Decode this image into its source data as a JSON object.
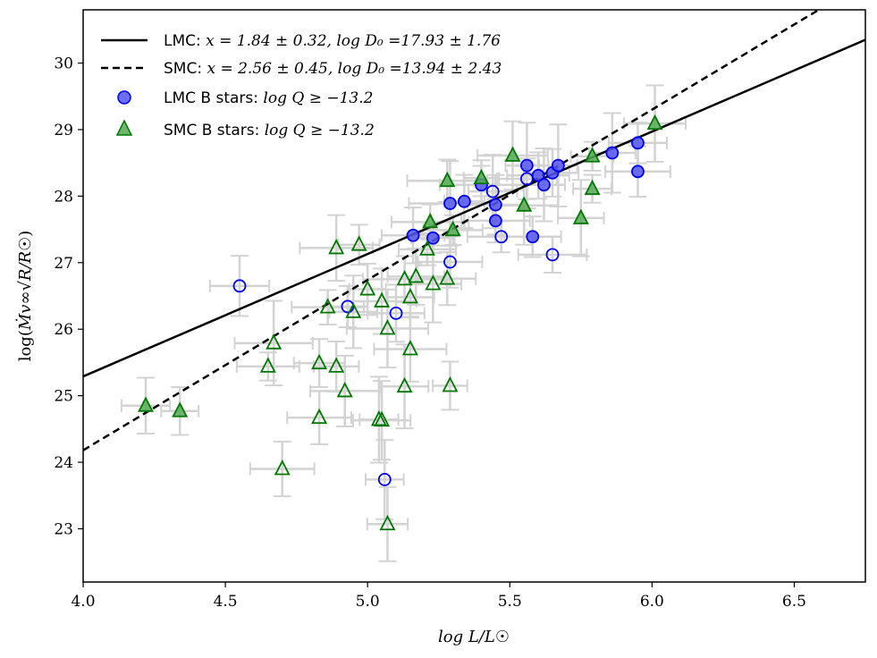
{
  "chart_data": {
    "type": "scatter",
    "xlabel": "log L/L☉",
    "ylabel": "log(Ṁv∞√(R/R☉))",
    "xlim": [
      4.0,
      6.75
    ],
    "ylim": [
      22.2,
      30.8
    ],
    "x_ticks": [
      "4.0",
      "4.5",
      "5.0",
      "5.5",
      "6.0",
      "6.5"
    ],
    "y_ticks": [
      "23",
      "24",
      "25",
      "26",
      "27",
      "28",
      "29",
      "30"
    ],
    "x_tick_values": [
      4.0,
      4.5,
      5.0,
      5.5,
      6.0,
      6.5
    ],
    "y_tick_values": [
      23,
      24,
      25,
      26,
      27,
      28,
      29,
      30
    ],
    "legend_placement": "top-left",
    "fits": [
      {
        "name": "LMC",
        "style": "solid",
        "slope": 1.84,
        "intercept": 17.93,
        "legend_prefix": "LMC: ",
        "legend_math": "x = 1.84 ± 0.32, log D₀ =17.93 ± 1.76"
      },
      {
        "name": "SMC",
        "style": "dashed",
        "slope": 2.56,
        "intercept": 13.94,
        "legend_prefix": "SMC: ",
        "legend_math": "x = 2.56 ± 0.45, log D₀ =13.94 ± 2.43"
      }
    ],
    "series": [
      {
        "name": "LMC B stars",
        "legend_prefix": "LMC B stars: ",
        "legend_math": "log Q ≥ −13.2",
        "marker": "circle",
        "color": "#0000ee",
        "fill": "#5555ee",
        "filled_points": [
          [
            5.16,
            27.41
          ],
          [
            5.23,
            27.37
          ],
          [
            5.29,
            27.89
          ],
          [
            5.34,
            27.92
          ],
          [
            5.4,
            28.17
          ],
          [
            5.45,
            27.87
          ],
          [
            5.45,
            27.63
          ],
          [
            5.56,
            28.46
          ],
          [
            5.58,
            27.39
          ],
          [
            5.6,
            28.31
          ],
          [
            5.62,
            28.17
          ],
          [
            5.65,
            28.35
          ],
          [
            5.67,
            28.46
          ],
          [
            5.86,
            28.65
          ],
          [
            5.95,
            28.8
          ],
          [
            5.95,
            28.37
          ]
        ],
        "open_points": [
          [
            4.55,
            26.65
          ],
          [
            4.93,
            26.34
          ],
          [
            5.1,
            26.24
          ],
          [
            5.06,
            23.74
          ],
          [
            5.29,
            27.01
          ],
          [
            5.44,
            28.07
          ],
          [
            5.47,
            27.39
          ],
          [
            5.56,
            28.26
          ],
          [
            5.65,
            27.12
          ]
        ]
      },
      {
        "name": "SMC B stars",
        "legend_prefix": "SMC B stars: ",
        "legend_math": "log Q ≥ −13.2",
        "marker": "triangle",
        "color": "#007700",
        "fill": "#55aa55",
        "filled_points": [
          [
            5.28,
            28.23
          ],
          [
            5.4,
            28.27
          ],
          [
            5.51,
            28.61
          ],
          [
            5.55,
            27.86
          ],
          [
            5.75,
            27.67
          ],
          [
            5.79,
            28.6
          ],
          [
            5.79,
            28.11
          ],
          [
            6.01,
            29.09
          ],
          [
            5.22,
            27.61
          ],
          [
            5.3,
            27.49
          ],
          [
            4.22,
            24.85
          ],
          [
            4.34,
            24.77
          ]
        ],
        "open_points": [
          [
            4.89,
            27.22
          ],
          [
            4.97,
            27.27
          ],
          [
            5.21,
            27.2
          ],
          [
            5.0,
            26.6
          ],
          [
            5.05,
            26.42
          ],
          [
            5.13,
            26.75
          ],
          [
            5.17,
            26.79
          ],
          [
            5.23,
            26.68
          ],
          [
            5.28,
            26.76
          ],
          [
            5.15,
            26.48
          ],
          [
            4.86,
            26.33
          ],
          [
            4.95,
            26.26
          ],
          [
            4.67,
            25.79
          ],
          [
            5.07,
            26.01
          ],
          [
            5.15,
            25.7
          ],
          [
            4.65,
            25.44
          ],
          [
            4.83,
            25.49
          ],
          [
            4.89,
            25.44
          ],
          [
            4.92,
            25.07
          ],
          [
            5.13,
            25.14
          ],
          [
            5.29,
            25.15
          ],
          [
            4.83,
            24.67
          ],
          [
            5.04,
            24.64
          ],
          [
            5.05,
            24.63
          ],
          [
            4.7,
            23.9
          ],
          [
            5.07,
            23.07
          ]
        ]
      }
    ]
  }
}
